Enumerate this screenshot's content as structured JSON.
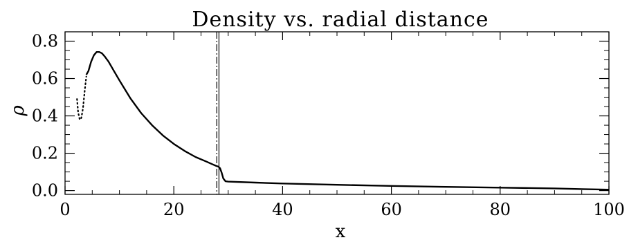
{
  "chart_data": {
    "type": "line",
    "title": "Density vs. radial distance",
    "xlabel": "x",
    "ylabel": "ρ",
    "xlim": [
      0,
      100
    ],
    "ylim": [
      -0.02,
      0.85
    ],
    "x_ticks": [
      0,
      20,
      40,
      60,
      80,
      100
    ],
    "x_tick_labels": [
      "0",
      "20",
      "40",
      "60",
      "80",
      "100"
    ],
    "y_ticks": [
      0.0,
      0.2,
      0.4,
      0.6,
      0.8
    ],
    "y_tick_labels": [
      "0.0",
      "0.2",
      "0.4",
      "0.6",
      "0.8"
    ],
    "grid": false,
    "series": [
      {
        "style": "dotted",
        "x": [
          2.2,
          2.4,
          2.7,
          3.0,
          3.3,
          3.6,
          3.9
        ],
        "y": [
          0.49,
          0.42,
          0.38,
          0.39,
          0.44,
          0.53,
          0.61
        ]
      },
      {
        "style": "solid",
        "x": [
          3.9,
          4.3,
          4.8,
          5.3,
          5.8,
          6.3,
          6.8,
          7.3,
          8,
          9,
          10,
          12,
          14,
          16,
          18,
          20,
          22,
          24,
          26,
          27,
          27.8,
          28.2,
          28.5,
          28.8,
          29.1,
          29.5,
          30,
          35,
          40,
          50,
          60,
          70,
          80,
          90,
          95,
          100
        ],
        "y": [
          0.62,
          0.64,
          0.69,
          0.725,
          0.742,
          0.742,
          0.735,
          0.718,
          0.69,
          0.64,
          0.59,
          0.495,
          0.415,
          0.35,
          0.295,
          0.25,
          0.212,
          0.18,
          0.155,
          0.142,
          0.132,
          0.128,
          0.12,
          0.095,
          0.065,
          0.05,
          0.048,
          0.043,
          0.038,
          0.031,
          0.025,
          0.02,
          0.016,
          0.012,
          0.008,
          0.005
        ]
      }
    ],
    "vertical_lines": [
      {
        "x": 27.9,
        "style": "dash-dot"
      },
      {
        "x": 28.3,
        "style": "solid"
      }
    ],
    "colors": {
      "line": "#000000",
      "background": "#ffffff"
    }
  }
}
